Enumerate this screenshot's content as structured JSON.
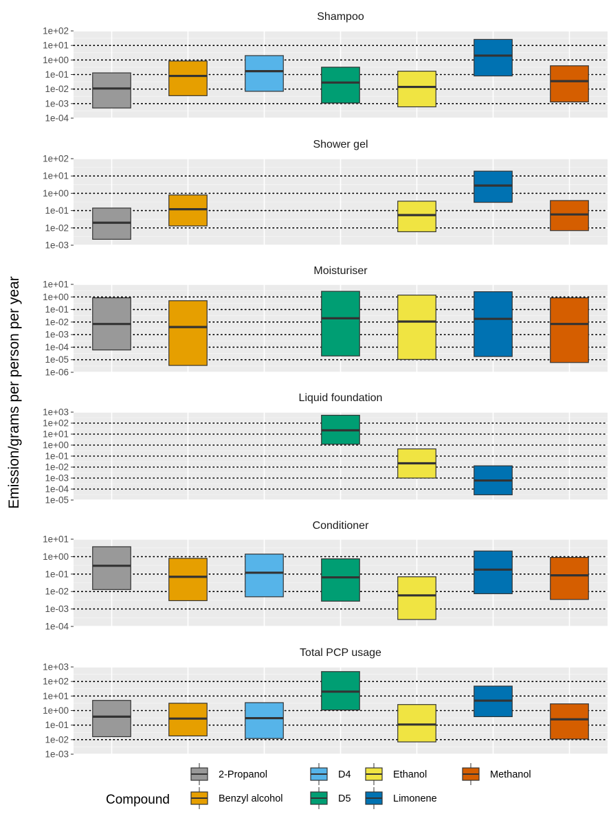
{
  "chart_data": {
    "type": "box",
    "ylabel": "Emission/grams per person per year",
    "scale": "log10",
    "categories": [
      "2-Propanol",
      "Benzyl alcohol",
      "D4",
      "D5",
      "Ethanol",
      "Limonene",
      "Methanol"
    ],
    "colors": {
      "2-Propanol": "#999999",
      "Benzyl alcohol": "#E69F00",
      "D4": "#56B4E9",
      "D5": "#009E73",
      "Ethanol": "#F0E442",
      "Limonene": "#0072B2",
      "Methanol": "#D55E00"
    },
    "legend": {
      "title": "Compound",
      "position": "bottom",
      "order": [
        "2-Propanol",
        "Benzyl alcohol",
        "D4",
        "D5",
        "Ethanol",
        "Limonene",
        "Methanol"
      ]
    },
    "panels": [
      {
        "title": "Shampoo",
        "ylim": [
          0.0001,
          100
        ],
        "yticks": [
          "1e-04",
          "1e-03",
          "1e-02",
          "1e-01",
          "1e+00",
          "1e+01",
          "1e+02"
        ],
        "boxes": [
          {
            "compound": "2-Propanol",
            "q1": 0.0005,
            "median": 0.011,
            "q3": 0.13
          },
          {
            "compound": "Benzyl alcohol",
            "q1": 0.0035,
            "median": 0.08,
            "q3": 0.85
          },
          {
            "compound": "D4",
            "q1": 0.007,
            "median": 0.17,
            "q3": 2.0
          },
          {
            "compound": "D5",
            "q1": 0.0011,
            "median": 0.028,
            "q3": 0.32
          },
          {
            "compound": "Ethanol",
            "q1": 0.0006,
            "median": 0.014,
            "q3": 0.17
          },
          {
            "compound": "Limonene",
            "q1": 0.08,
            "median": 2.0,
            "q3": 26
          },
          {
            "compound": "Methanol",
            "q1": 0.0013,
            "median": 0.035,
            "q3": 0.4
          }
        ]
      },
      {
        "title": "Shower gel",
        "ylim": [
          0.001,
          100
        ],
        "yticks": [
          "1e-03",
          "1e-02",
          "1e-01",
          "1e+00",
          "1e+01",
          "1e+02"
        ],
        "boxes": [
          {
            "compound": "2-Propanol",
            "q1": 0.0022,
            "median": 0.02,
            "q3": 0.14
          },
          {
            "compound": "Benzyl alcohol",
            "q1": 0.013,
            "median": 0.12,
            "q3": 0.8
          },
          {
            "compound": "Ethanol",
            "q1": 0.006,
            "median": 0.055,
            "q3": 0.35
          },
          {
            "compound": "Limonene",
            "q1": 0.3,
            "median": 2.8,
            "q3": 19
          },
          {
            "compound": "Methanol",
            "q1": 0.007,
            "median": 0.06,
            "q3": 0.38
          }
        ]
      },
      {
        "title": "Moisturiser",
        "ylim": [
          1e-06,
          10
        ],
        "yticks": [
          "1e-06",
          "1e-05",
          "1e-04",
          "1e-03",
          "1e-02",
          "1e-01",
          "1e+00",
          "1e+01"
        ],
        "boxes": [
          {
            "compound": "2-Propanol",
            "q1": 6e-05,
            "median": 0.007,
            "q3": 0.85
          },
          {
            "compound": "Benzyl alcohol",
            "q1": 3.5e-06,
            "median": 0.004,
            "q3": 0.5
          },
          {
            "compound": "D5",
            "q1": 2e-05,
            "median": 0.02,
            "q3": 2.8
          },
          {
            "compound": "Ethanol",
            "q1": 1.05e-05,
            "median": 0.011,
            "q3": 1.4
          },
          {
            "compound": "Limonene",
            "q1": 1.8e-05,
            "median": 0.018,
            "q3": 2.6
          },
          {
            "compound": "Methanol",
            "q1": 6e-06,
            "median": 0.007,
            "q3": 0.85
          }
        ]
      },
      {
        "title": "Liquid foundation",
        "ylim": [
          1e-05,
          1000
        ],
        "yticks": [
          "1e-05",
          "1e-04",
          "1e-03",
          "1e-02",
          "1e-01",
          "1e+00",
          "1e+01",
          "1e+02",
          "1e+03"
        ],
        "boxes": [
          {
            "compound": "D5",
            "q1": 1.2,
            "median": 22,
            "q3": 520
          },
          {
            "compound": "Ethanol",
            "q1": 0.001,
            "median": 0.022,
            "q3": 0.45
          },
          {
            "compound": "Limonene",
            "q1": 3e-05,
            "median": 0.0006,
            "q3": 0.013
          }
        ]
      },
      {
        "title": "Conditioner",
        "ylim": [
          0.0001,
          10
        ],
        "yticks": [
          "1e-04",
          "1e-03",
          "1e-02",
          "1e-01",
          "1e+00",
          "1e+01"
        ],
        "boxes": [
          {
            "compound": "2-Propanol",
            "q1": 0.013,
            "median": 0.3,
            "q3": 3.7
          },
          {
            "compound": "Benzyl alcohol",
            "q1": 0.003,
            "median": 0.07,
            "q3": 0.8
          },
          {
            "compound": "D4",
            "q1": 0.005,
            "median": 0.12,
            "q3": 1.4
          },
          {
            "compound": "D5",
            "q1": 0.0028,
            "median": 0.065,
            "q3": 0.75
          },
          {
            "compound": "Ethanol",
            "q1": 0.00025,
            "median": 0.006,
            "q3": 0.07
          },
          {
            "compound": "Limonene",
            "q1": 0.0075,
            "median": 0.18,
            "q3": 2.1
          },
          {
            "compound": "Methanol",
            "q1": 0.0035,
            "median": 0.085,
            "q3": 0.9
          }
        ]
      },
      {
        "title": "Total PCP usage",
        "ylim": [
          0.001,
          1000
        ],
        "yticks": [
          "1e-03",
          "1e-02",
          "1e-01",
          "1e+00",
          "1e+01",
          "1e+02",
          "1e+03"
        ],
        "boxes": [
          {
            "compound": "2-Propanol",
            "q1": 0.016,
            "median": 0.38,
            "q3": 5
          },
          {
            "compound": "Benzyl alcohol",
            "q1": 0.018,
            "median": 0.28,
            "q3": 3.2
          },
          {
            "compound": "D4",
            "q1": 0.012,
            "median": 0.3,
            "q3": 3.5
          },
          {
            "compound": "D5",
            "q1": 1.1,
            "median": 20,
            "q3": 480
          },
          {
            "compound": "Ethanol",
            "q1": 0.007,
            "median": 0.11,
            "q3": 2.6
          },
          {
            "compound": "Limonene",
            "q1": 0.38,
            "median": 4.8,
            "q3": 48
          },
          {
            "compound": "Methanol",
            "q1": 0.011,
            "median": 0.25,
            "q3": 2.9
          }
        ]
      }
    ]
  }
}
